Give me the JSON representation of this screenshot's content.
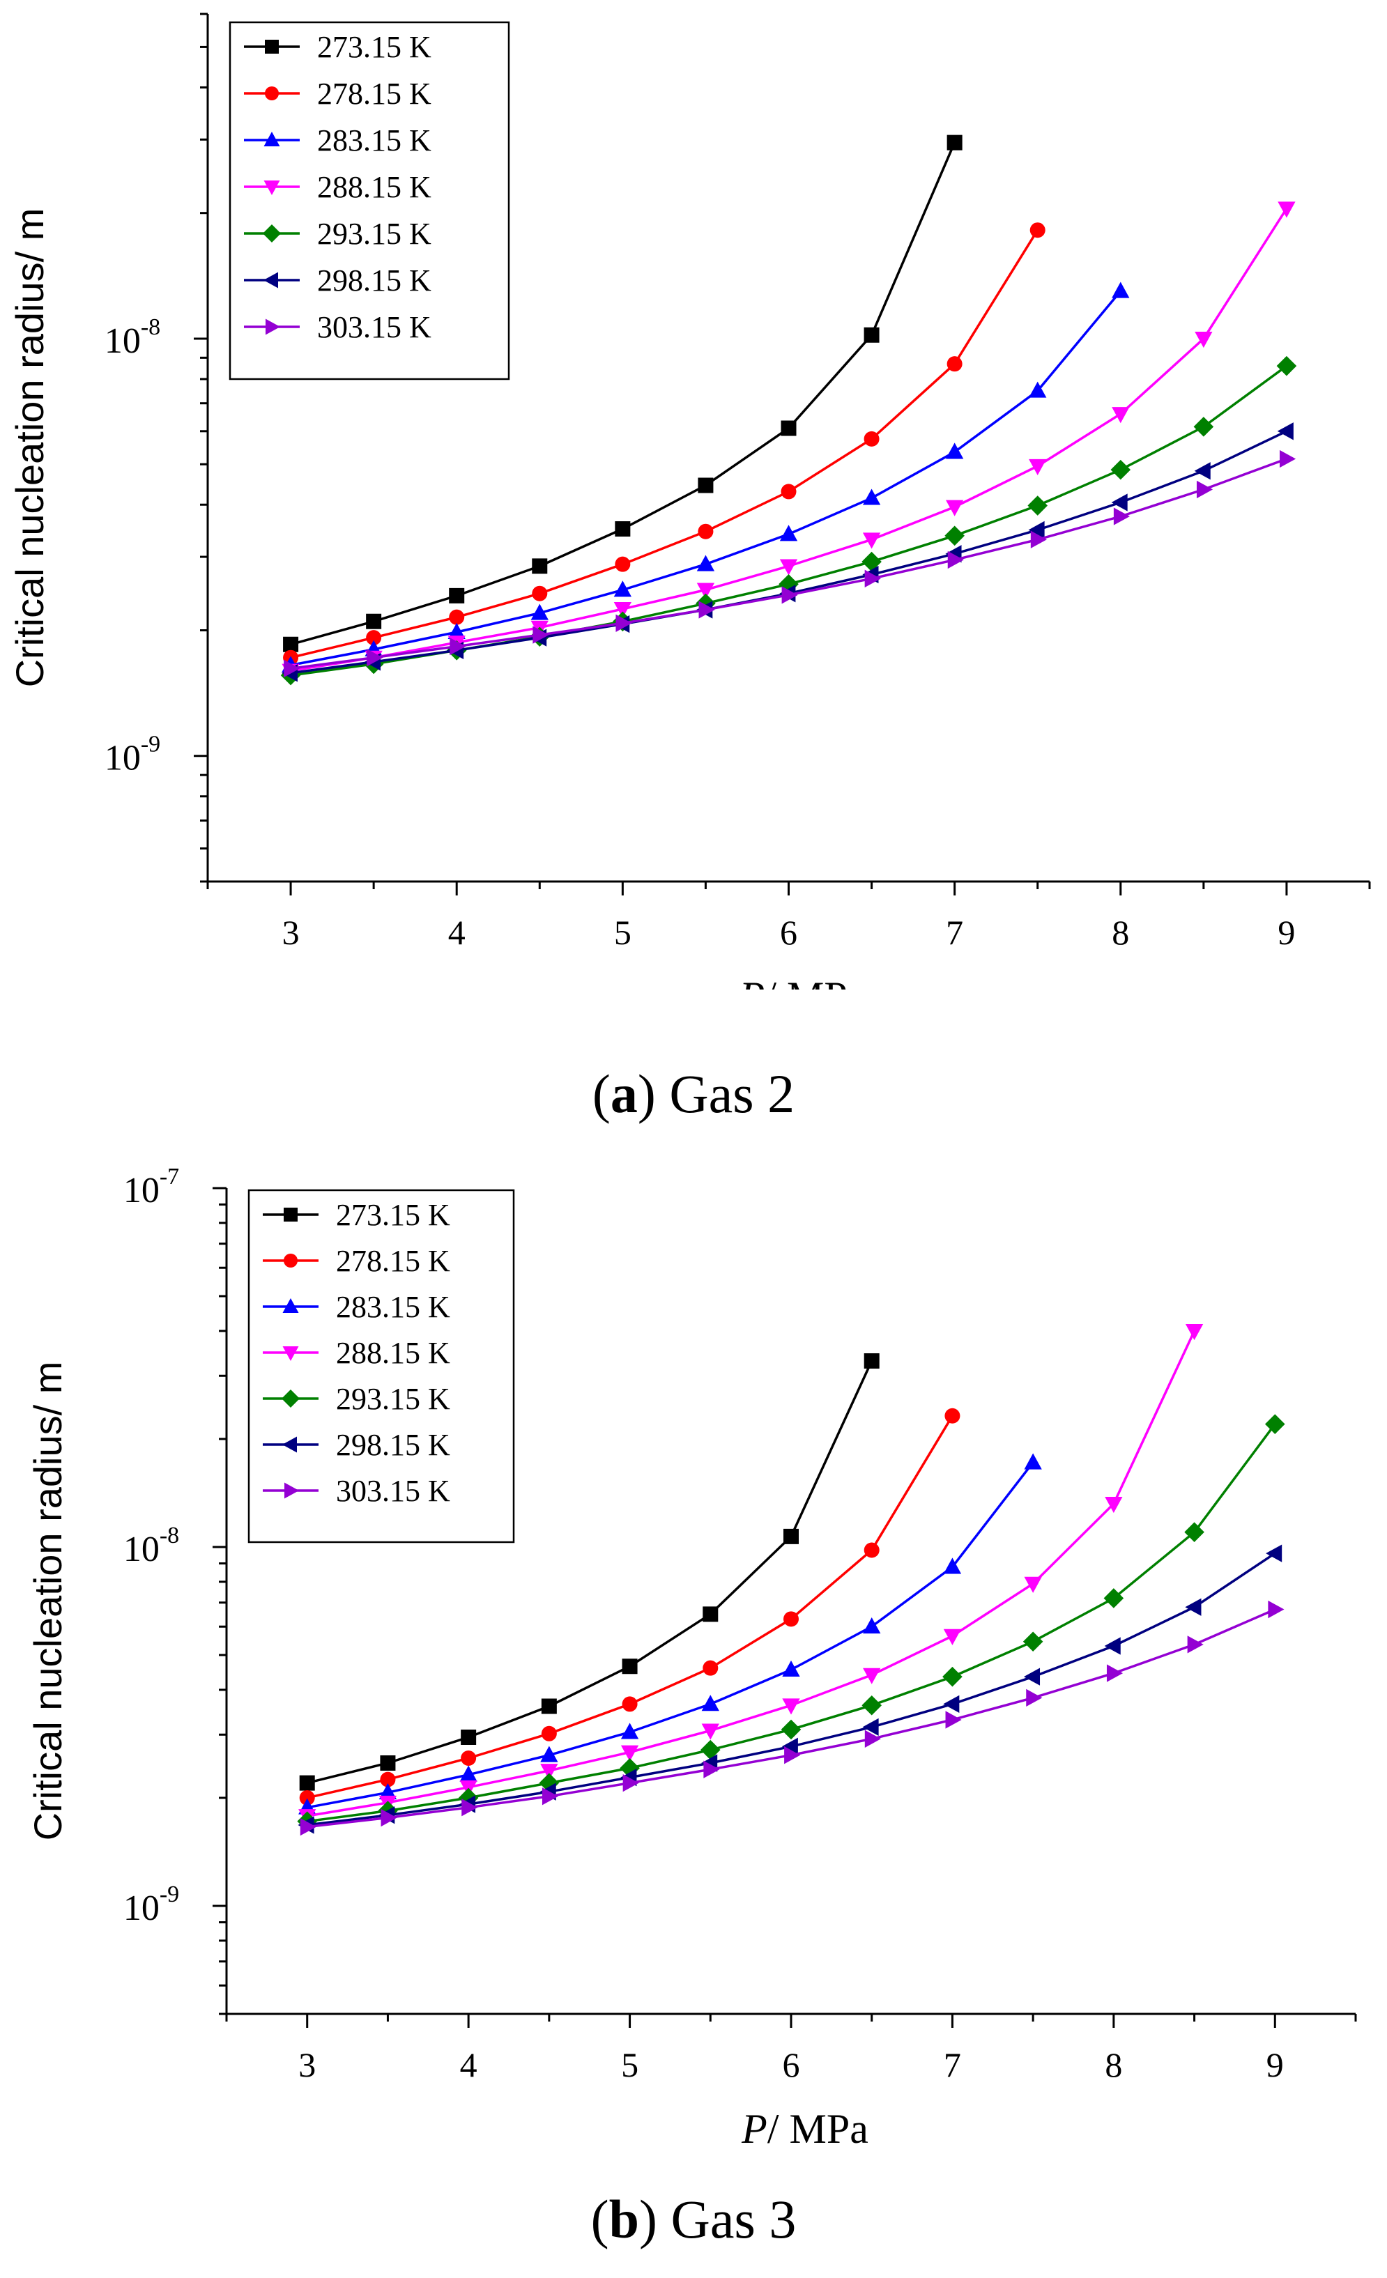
{
  "chart_data": [
    {
      "type": "line",
      "caption_letter": "a",
      "caption_text": " Gas 2",
      "xlabel_italic": "P",
      "xlabel_rest": "/ MPa",
      "ylabel": "Critical nucleation radius/ m",
      "yscale": "log",
      "xlim": [
        2.5,
        9.5
      ],
      "ylim": [
        5e-10,
        6e-08
      ],
      "xticks": [
        3,
        4,
        5,
        6,
        7,
        8,
        9
      ],
      "ytick_labels": [
        {
          "value": 1e-09,
          "base": "10",
          "exp": "-9"
        },
        {
          "value": 1e-08,
          "base": "10",
          "exp": "-8"
        }
      ],
      "legend_position": "top-left",
      "series": [
        {
          "name": "273.15 K",
          "color": "#000000",
          "marker": "square",
          "x": [
            3,
            3.5,
            4,
            4.5,
            5,
            5.5,
            6,
            6.5,
            7
          ],
          "y": [
            1.85e-09,
            2.1e-09,
            2.42e-09,
            2.85e-09,
            3.5e-09,
            4.45e-09,
            6.1e-09,
            1.02e-08,
            2.95e-08
          ]
        },
        {
          "name": "278.15 K",
          "color": "#ff0000",
          "marker": "circle",
          "x": [
            3,
            3.5,
            4,
            4.5,
            5,
            5.5,
            6,
            6.5,
            7,
            7.5
          ],
          "y": [
            1.72e-09,
            1.92e-09,
            2.15e-09,
            2.45e-09,
            2.88e-09,
            3.45e-09,
            4.3e-09,
            5.75e-09,
            8.7e-09,
            1.82e-08
          ]
        },
        {
          "name": "283.15 K",
          "color": "#0000ff",
          "marker": "triangle-up",
          "x": [
            3,
            3.5,
            4,
            4.5,
            5,
            5.5,
            6,
            6.5,
            7,
            7.5,
            8
          ],
          "y": [
            1.65e-09,
            1.8e-09,
            1.98e-09,
            2.2e-09,
            2.5e-09,
            2.88e-09,
            3.4e-09,
            4.15e-09,
            5.35e-09,
            7.5e-09,
            1.3e-08
          ]
        },
        {
          "name": "288.15 K",
          "color": "#ff00ff",
          "marker": "triangle-down",
          "x": [
            3,
            3.5,
            4,
            4.5,
            5,
            5.5,
            6,
            6.5,
            7,
            7.5,
            8,
            8.5,
            9
          ],
          "y": [
            1.6e-09,
            1.72e-09,
            1.87e-09,
            2.03e-09,
            2.25e-09,
            2.5e-09,
            2.85e-09,
            3.3e-09,
            3.95e-09,
            4.95e-09,
            6.6e-09,
            1e-08,
            2.05e-08
          ]
        },
        {
          "name": "293.15 K",
          "color": "#008000",
          "marker": "diamond",
          "x": [
            3,
            3.5,
            4,
            4.5,
            5,
            5.5,
            6,
            6.5,
            7,
            7.5,
            8,
            8.5,
            9
          ],
          "y": [
            1.56e-09,
            1.66e-09,
            1.79e-09,
            1.93e-09,
            2.1e-09,
            2.32e-09,
            2.58e-09,
            2.92e-09,
            3.37e-09,
            3.98e-09,
            4.85e-09,
            6.15e-09,
            8.6e-09
          ]
        },
        {
          "name": "298.15 K",
          "color": "#000080",
          "marker": "triangle-left",
          "x": [
            3,
            3.5,
            4,
            4.5,
            5,
            5.5,
            6,
            6.5,
            7,
            7.5,
            8,
            8.5,
            9
          ],
          "y": [
            1.58e-09,
            1.68e-09,
            1.79e-09,
            1.92e-09,
            2.07e-09,
            2.24e-09,
            2.45e-09,
            2.72e-09,
            3.05e-09,
            3.48e-09,
            4.05e-09,
            4.82e-09,
            6e-09
          ]
        },
        {
          "name": "303.15 K",
          "color": "#9400d3",
          "marker": "triangle-right",
          "x": [
            3,
            3.5,
            4,
            4.5,
            5,
            5.5,
            6,
            6.5,
            7,
            7.5,
            8,
            8.5,
            9
          ],
          "y": [
            1.62e-09,
            1.72e-09,
            1.83e-09,
            1.95e-09,
            2.08e-09,
            2.24e-09,
            2.43e-09,
            2.66e-09,
            2.95e-09,
            3.3e-09,
            3.75e-09,
            4.35e-09,
            5.15e-09
          ]
        }
      ]
    },
    {
      "type": "line",
      "caption_letter": "b",
      "caption_text": " Gas 3",
      "xlabel_italic": "P",
      "xlabel_rest": "/ MPa",
      "ylabel": "Critical nucleation radius/ m",
      "yscale": "log",
      "xlim": [
        2.5,
        9.5
      ],
      "ylim": [
        5e-10,
        1e-07
      ],
      "xticks": [
        3,
        4,
        5,
        6,
        7,
        8,
        9
      ],
      "ytick_labels": [
        {
          "value": 1e-09,
          "base": "10",
          "exp": "-9"
        },
        {
          "value": 1e-08,
          "base": "10",
          "exp": "-8"
        },
        {
          "value": 1e-07,
          "base": "10",
          "exp": "-7"
        }
      ],
      "legend_position": "top-left",
      "series": [
        {
          "name": "273.15 K",
          "color": "#000000",
          "marker": "square",
          "x": [
            3,
            3.5,
            4,
            4.5,
            5,
            5.5,
            6,
            6.5
          ],
          "y": [
            2.2e-09,
            2.5e-09,
            2.95e-09,
            3.6e-09,
            4.65e-09,
            6.5e-09,
            1.07e-08,
            3.3e-08
          ]
        },
        {
          "name": "278.15 K",
          "color": "#ff0000",
          "marker": "circle",
          "x": [
            3,
            3.5,
            4,
            4.5,
            5,
            5.5,
            6,
            6.5,
            7
          ],
          "y": [
            2e-09,
            2.25e-09,
            2.58e-09,
            3.02e-09,
            3.65e-09,
            4.6e-09,
            6.3e-09,
            9.8e-09,
            2.32e-08
          ]
        },
        {
          "name": "283.15 K",
          "color": "#0000ff",
          "marker": "triangle-up",
          "x": [
            3,
            3.5,
            4,
            4.5,
            5,
            5.5,
            6,
            6.5,
            7,
            7.5
          ],
          "y": [
            1.88e-09,
            2.07e-09,
            2.32e-09,
            2.63e-09,
            3.05e-09,
            3.65e-09,
            4.55e-09,
            6e-09,
            8.8e-09,
            1.72e-08
          ]
        },
        {
          "name": "288.15 K",
          "color": "#ff00ff",
          "marker": "triangle-down",
          "x": [
            3,
            3.5,
            4,
            4.5,
            5,
            5.5,
            6,
            6.5,
            7,
            7.5,
            8,
            8.5
          ],
          "y": [
            1.78e-09,
            1.94e-09,
            2.14e-09,
            2.38e-09,
            2.68e-09,
            3.08e-09,
            3.62e-09,
            4.4e-09,
            5.65e-09,
            7.9e-09,
            1.32e-08,
            4e-08
          ]
        },
        {
          "name": "293.15 K",
          "color": "#008000",
          "marker": "diamond",
          "x": [
            3,
            3.5,
            4,
            4.5,
            5,
            5.5,
            6,
            6.5,
            7,
            7.5,
            8,
            8.5,
            9
          ],
          "y": [
            1.72e-09,
            1.84e-09,
            2e-09,
            2.2e-09,
            2.42e-09,
            2.72e-09,
            3.1e-09,
            3.62e-09,
            4.35e-09,
            5.45e-09,
            7.2e-09,
            1.1e-08,
            2.2e-08
          ]
        },
        {
          "name": "298.15 K",
          "color": "#000080",
          "marker": "triangle-left",
          "x": [
            3,
            3.5,
            4,
            4.5,
            5,
            5.5,
            6,
            6.5,
            7,
            7.5,
            8,
            8.5,
            9
          ],
          "y": [
            1.68e-09,
            1.79e-09,
            1.92e-09,
            2.08e-09,
            2.28e-09,
            2.5e-09,
            2.78e-09,
            3.15e-09,
            3.65e-09,
            4.35e-09,
            5.3e-09,
            6.8e-09,
            9.6e-09
          ]
        },
        {
          "name": "303.15 K",
          "color": "#9400d3",
          "marker": "triangle-right",
          "x": [
            3,
            3.5,
            4,
            4.5,
            5,
            5.5,
            6,
            6.5,
            7,
            7.5,
            8,
            8.5,
            9
          ],
          "y": [
            1.66e-09,
            1.76e-09,
            1.88e-09,
            2.02e-09,
            2.2e-09,
            2.4e-09,
            2.63e-09,
            2.92e-09,
            3.3e-09,
            3.8e-09,
            4.45e-09,
            5.35e-09,
            6.7e-09
          ]
        }
      ]
    }
  ]
}
